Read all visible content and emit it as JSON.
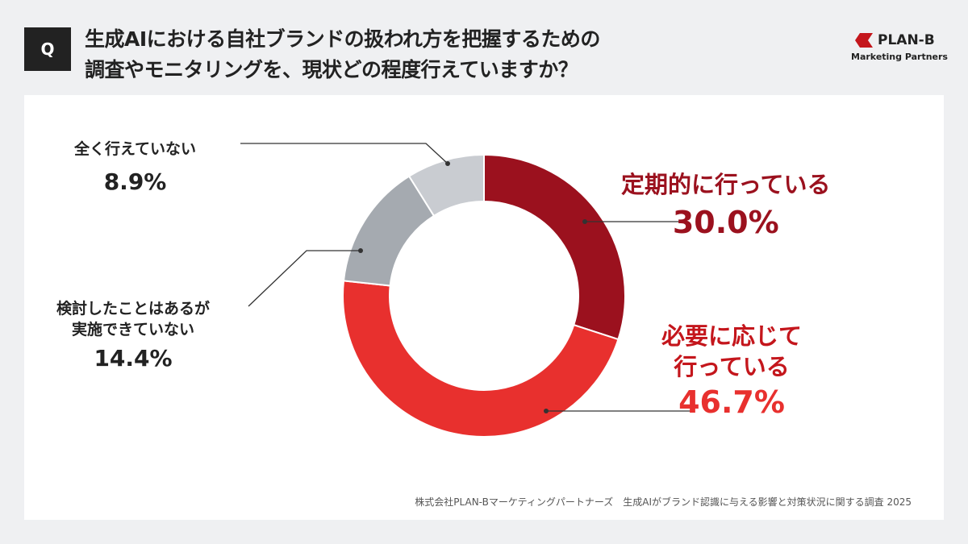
{
  "header": {
    "q_label": "Q",
    "title_line1": "生成AIにおける自社ブランドの扱われ方を把握するための",
    "title_line2": "調査やモニタリングを、現状どの程度行えていますか？",
    "logo_name": "PLAN-B",
    "logo_sub": "Marketing Partners"
  },
  "chart_data": {
    "type": "pie",
    "variant": "donut",
    "start": "top",
    "direction": "clockwise",
    "series": [
      {
        "label": "定期的に行っている",
        "value": 30.0,
        "display": "30.0%",
        "color": "#9b111e"
      },
      {
        "label": "必要に応じて行っている",
        "value": 46.7,
        "display": "46.7%",
        "color": "#e8302e"
      },
      {
        "label": "検討したことはあるが実施できていない",
        "value": 14.4,
        "display": "14.4%",
        "color": "#a5aab0"
      },
      {
        "label": "全く行えていない",
        "value": 8.9,
        "display": "8.9%",
        "color": "#c9ccd1"
      }
    ]
  },
  "labels": {
    "s0": "定期的に行っている",
    "s1a": "必要に応じて",
    "s1b": "行っている",
    "s2a": "検討したことはあるが",
    "s2b": "実施できていない",
    "s3": "全く行えていない"
  },
  "source": "株式会社PLAN-Bマーケティングパートナーズ　生成AIがブランド認識に与える影響と対策状況に関する調査 2025"
}
